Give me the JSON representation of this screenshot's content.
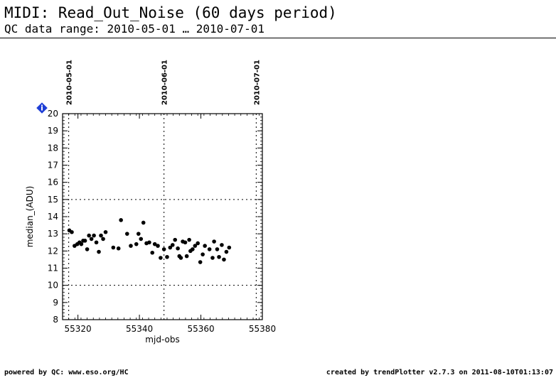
{
  "header": {
    "title": "MIDI: Read_Out_Noise (60 days period)",
    "subtitle": "QC data range: 2010-05-01 … 2010-07-01"
  },
  "info_badge": {
    "icon": "info-diamond-icon",
    "label": "i",
    "color": "#1f3fd6"
  },
  "footer": {
    "left": "powered by QC: www.eso.org/HC",
    "right": "created by trendPlotter v2.7.3 on 2011-08-10T01:13:07"
  },
  "chart_data": {
    "type": "scatter",
    "xlabel": "mjd-obs",
    "ylabel": "median_(ADU)",
    "xlim": [
      55315,
      55380
    ],
    "ylim": [
      8,
      20
    ],
    "x_ticks": [
      55320,
      55340,
      55360,
      55380
    ],
    "y_ticks": [
      8,
      9,
      10,
      11,
      12,
      13,
      14,
      15,
      16,
      17,
      18,
      19,
      20
    ],
    "date_markers": [
      {
        "x": 55317,
        "label": "2010-05-01"
      },
      {
        "x": 55348,
        "label": "2010-06-01"
      },
      {
        "x": 55378,
        "label": "2010-07-01"
      }
    ],
    "reference_lines": [
      10,
      15
    ],
    "points": [
      [
        55317.2,
        13.2
      ],
      [
        55318.0,
        13.1
      ],
      [
        55318.9,
        12.3
      ],
      [
        55319.8,
        12.4
      ],
      [
        55320.5,
        12.5
      ],
      [
        55321.1,
        12.4
      ],
      [
        55321.7,
        12.6
      ],
      [
        55322.3,
        12.6
      ],
      [
        55323.0,
        12.1
      ],
      [
        55323.6,
        12.9
      ],
      [
        55324.4,
        12.7
      ],
      [
        55325.2,
        12.9
      ],
      [
        55326.0,
        12.5
      ],
      [
        55326.8,
        11.95
      ],
      [
        55327.5,
        12.9
      ],
      [
        55328.2,
        12.7
      ],
      [
        55329.0,
        13.1
      ],
      [
        55331.5,
        12.2
      ],
      [
        55333.2,
        12.15
      ],
      [
        55334.0,
        13.8
      ],
      [
        55336.0,
        13.0
      ],
      [
        55337.2,
        12.3
      ],
      [
        55339.0,
        12.4
      ],
      [
        55339.7,
        13.0
      ],
      [
        55340.5,
        12.7
      ],
      [
        55341.3,
        13.65
      ],
      [
        55342.3,
        12.45
      ],
      [
        55343.2,
        12.5
      ],
      [
        55344.2,
        11.9
      ],
      [
        55345.0,
        12.4
      ],
      [
        55346.0,
        12.3
      ],
      [
        55346.9,
        11.6
      ],
      [
        55348.0,
        12.1
      ],
      [
        55349.0,
        11.65
      ],
      [
        55350.0,
        12.2
      ],
      [
        55350.8,
        12.35
      ],
      [
        55351.6,
        12.65
      ],
      [
        55352.5,
        12.15
      ],
      [
        55353.0,
        11.7
      ],
      [
        55353.5,
        11.6
      ],
      [
        55354.1,
        12.55
      ],
      [
        55354.9,
        12.5
      ],
      [
        55355.4,
        11.7
      ],
      [
        55356.2,
        12.65
      ],
      [
        55356.6,
        12.0
      ],
      [
        55357.3,
        12.1
      ],
      [
        55358.1,
        12.3
      ],
      [
        55359.0,
        12.45
      ],
      [
        55359.8,
        11.35
      ],
      [
        55360.6,
        11.8
      ],
      [
        55361.3,
        12.3
      ],
      [
        55362.8,
        12.1
      ],
      [
        55363.8,
        11.6
      ],
      [
        55364.3,
        12.55
      ],
      [
        55365.3,
        12.1
      ],
      [
        55365.9,
        11.65
      ],
      [
        55366.8,
        12.35
      ],
      [
        55367.5,
        11.5
      ],
      [
        55368.3,
        11.95
      ],
      [
        55369.2,
        12.2
      ]
    ]
  }
}
